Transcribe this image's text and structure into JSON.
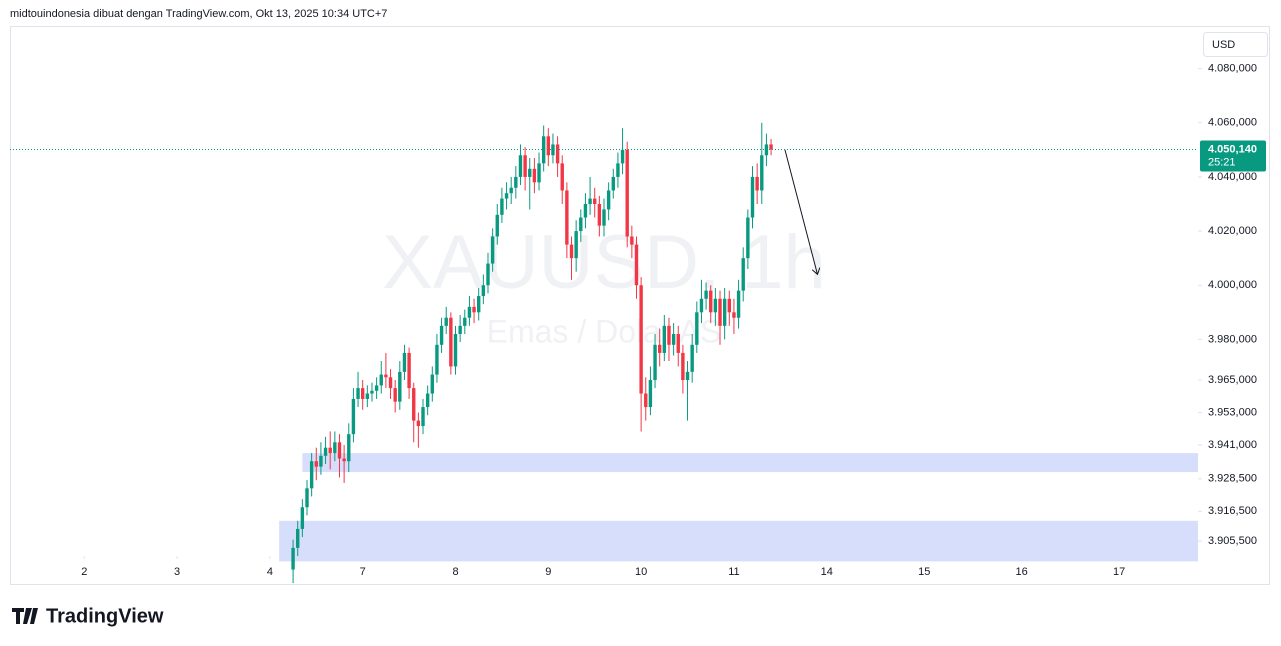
{
  "header": "midtouindonesia dibuat dengan TradingView.com, Okt 13, 2025 10:34 UTC+7",
  "footer": "TradingView",
  "chart_data": {
    "type": "candlestick",
    "watermark": "XAUUSD, 1h",
    "watermark_subtitle": "Emas / Dolar AS",
    "currency": "USD",
    "up_color": "#089981",
    "down_color": "#f23645",
    "last_price": {
      "value": 4050.14,
      "label": "4.050,140"
    },
    "countdown": "25:21",
    "xlim": [
      -16,
      240
    ],
    "xticks": [
      {
        "value": 0,
        "label": "2"
      },
      {
        "value": 20,
        "label": "3"
      },
      {
        "value": 40,
        "label": "4"
      },
      {
        "value": 60,
        "label": "7"
      },
      {
        "value": 80,
        "label": "8"
      },
      {
        "value": 100,
        "label": "9"
      },
      {
        "value": 120,
        "label": "10"
      },
      {
        "value": 140,
        "label": "11"
      },
      {
        "value": 160,
        "label": "14"
      },
      {
        "value": 181,
        "label": "15"
      },
      {
        "value": 202,
        "label": "16"
      },
      {
        "value": 223,
        "label": "17"
      }
    ],
    "ylim": [
      3900,
      4095
    ],
    "yticks": [
      {
        "value": 3905.5,
        "label": "3.905,500"
      },
      {
        "value": 3916.5,
        "label": "3.916,500"
      },
      {
        "value": 3928.5,
        "label": "3.928,500"
      },
      {
        "value": 3941,
        "label": "3.941,000"
      },
      {
        "value": 3953,
        "label": "3.953,000"
      },
      {
        "value": 3965,
        "label": "3.965,000"
      },
      {
        "value": 3980,
        "label": "3.980,000"
      },
      {
        "value": 4000,
        "label": "4.000,000"
      },
      {
        "value": 4020,
        "label": "4.020,000"
      },
      {
        "value": 4040,
        "label": "4.040,000"
      },
      {
        "value": 4060,
        "label": "4.060,000"
      },
      {
        "value": 4080,
        "label": "4.080,000"
      }
    ],
    "zones": [
      {
        "x_start": 47,
        "high": 3938,
        "low": 3931,
        "color": "#d6defc"
      },
      {
        "x_start": 42,
        "high": 3913,
        "low": 3898,
        "color": "#d6defc"
      }
    ],
    "arrow": {
      "x": [
        151,
        158
      ],
      "y": [
        4050,
        4004
      ]
    },
    "x": [
      45,
      46,
      47,
      48,
      49,
      50,
      51,
      52,
      53,
      54,
      55,
      56,
      57,
      58,
      59,
      60,
      61,
      62,
      63,
      64,
      65,
      66,
      67,
      68,
      69,
      70,
      71,
      72,
      73,
      74,
      75,
      76,
      77,
      78,
      79,
      80,
      81,
      82,
      83,
      84,
      85,
      86,
      87,
      88,
      89,
      90,
      91,
      92,
      93,
      94,
      95,
      96,
      97,
      98,
      99,
      100,
      101,
      102,
      103,
      104,
      105,
      106,
      107,
      108,
      109,
      110,
      111,
      112,
      113,
      114,
      115,
      116,
      117,
      118,
      119,
      120,
      121,
      122,
      123,
      124,
      125,
      126,
      127,
      128,
      129,
      130,
      131,
      132,
      133,
      134,
      135,
      136,
      137,
      138,
      139,
      140,
      141,
      142,
      143,
      144,
      145,
      146,
      147,
      148
    ],
    "open": [
      3895,
      3903,
      3910,
      3918,
      3925,
      3935,
      3933,
      3937,
      3940,
      3938,
      3942,
      3936,
      3935,
      3945,
      3958,
      3962,
      3958,
      3960,
      3961,
      3963,
      3967,
      3966,
      3962,
      3957,
      3968,
      3975,
      3962,
      3950,
      3948,
      3955,
      3960,
      3967,
      3978,
      3985,
      3988,
      3970,
      3982,
      3985,
      3988,
      3992,
      3990,
      3996,
      4000,
      4008,
      4018,
      4026,
      4032,
      4034,
      4036,
      4040,
      4048,
      4040,
      4043,
      4038,
      4045,
      4055,
      4048,
      4052,
      4045,
      4035,
      4015,
      4010,
      4020,
      4025,
      4030,
      4032,
      4030,
      4022,
      4028,
      4035,
      4040,
      4045,
      4050,
      4018,
      4015,
      4000,
      3960,
      3955,
      3965,
      3978,
      3975,
      3985,
      3978,
      3982,
      3975,
      3965,
      3968,
      3978,
      3990,
      3995,
      3998,
      3990,
      3995,
      3985,
      3995,
      3990,
      3988,
      3998,
      4010,
      4025,
      4040,
      4035,
      4048,
      4052
    ],
    "high": [
      3906,
      3913,
      3921,
      3928,
      3938,
      3940,
      3942,
      3944,
      3946,
      3946,
      3945,
      3941,
      3949,
      3962,
      3968,
      3965,
      3963,
      3964,
      3966,
      3972,
      3975,
      3969,
      3965,
      3972,
      3978,
      3977,
      3964,
      3953,
      3958,
      3963,
      3970,
      3982,
      3988,
      3992,
      3990,
      3985,
      3989,
      3991,
      3996,
      3995,
      3999,
      4004,
      4012,
      4021,
      4030,
      4036,
      4038,
      4040,
      4044,
      4052,
      4051,
      4047,
      4047,
      4049,
      4059,
      4058,
      4056,
      4055,
      4048,
      4038,
      4018,
      4024,
      4028,
      4034,
      4040,
      4036,
      4033,
      4032,
      4038,
      4043,
      4049,
      4058,
      4053,
      4022,
      4018,
      4003,
      3966,
      3970,
      3982,
      3984,
      3989,
      3988,
      3986,
      3985,
      3978,
      3972,
      3982,
      3994,
      4002,
      4001,
      4000,
      3999,
      3998,
      3999,
      3998,
      3995,
      4002,
      4014,
      4028,
      4044,
      4045,
      4060,
      4056,
      4054
    ],
    "low": [
      3890,
      3900,
      3907,
      3915,
      3922,
      3928,
      3930,
      3934,
      3932,
      3935,
      3929,
      3927,
      3931,
      3942,
      3955,
      3954,
      3955,
      3957,
      3958,
      3960,
      3962,
      3958,
      3953,
      3954,
      3965,
      3958,
      3942,
      3940,
      3945,
      3952,
      3957,
      3964,
      3975,
      3982,
      3967,
      3967,
      3979,
      3982,
      3985,
      3986,
      3987,
      3993,
      3997,
      4005,
      4015,
      4023,
      4028,
      4030,
      4032,
      4037,
      4035,
      4028,
      4034,
      4035,
      4042,
      4044,
      4045,
      4040,
      4030,
      4010,
      4002,
      4005,
      4016,
      4021,
      4026,
      4025,
      4018,
      4018,
      4024,
      4032,
      4036,
      4041,
      4014,
      4010,
      3995,
      3946,
      3950,
      3952,
      3962,
      3970,
      3972,
      3972,
      3974,
      3970,
      3960,
      3950,
      3964,
      3975,
      3986,
      3991,
      3986,
      3985,
      3978,
      3980,
      3985,
      3982,
      3984,
      3994,
      4006,
      4021,
      4030,
      4030,
      4044,
      4048
    ],
    "close": [
      3903,
      3910,
      3918,
      3925,
      3935,
      3933,
      3937,
      3940,
      3938,
      3942,
      3936,
      3935,
      3945,
      3958,
      3962,
      3958,
      3960,
      3961,
      3963,
      3967,
      3966,
      3962,
      3957,
      3968,
      3975,
      3962,
      3950,
      3948,
      3955,
      3960,
      3967,
      3978,
      3985,
      3988,
      3970,
      3982,
      3985,
      3988,
      3992,
      3990,
      3996,
      4000,
      4008,
      4018,
      4026,
      4032,
      4034,
      4036,
      4040,
      4048,
      4040,
      4043,
      4038,
      4045,
      4055,
      4048,
      4052,
      4045,
      4035,
      4015,
      4010,
      4020,
      4025,
      4030,
      4032,
      4030,
      4022,
      4028,
      4035,
      4040,
      4045,
      4050,
      4018,
      4015,
      4000,
      3960,
      3955,
      3965,
      3978,
      3975,
      3985,
      3978,
      3982,
      3975,
      3965,
      3968,
      3978,
      3990,
      3995,
      3998,
      3990,
      3995,
      3985,
      3995,
      3990,
      3988,
      3998,
      4010,
      4025,
      4040,
      4035,
      4048,
      4052,
      4050.14
    ]
  }
}
